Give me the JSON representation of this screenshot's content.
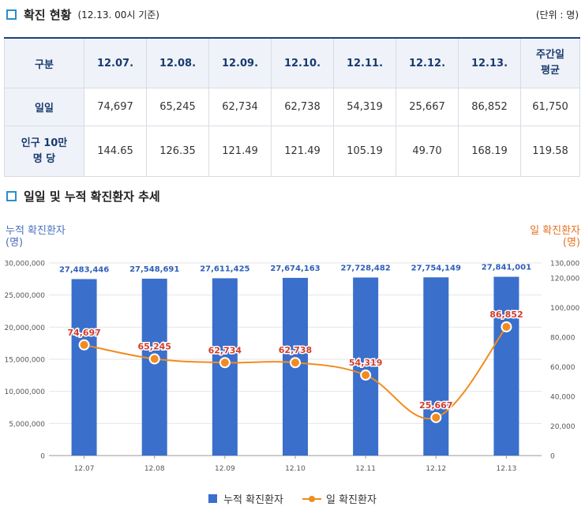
{
  "section1": {
    "title": "확진 현황",
    "subtitle": "(12.13. 00시 기준)",
    "unit": "(단위 : 명)"
  },
  "table": {
    "headers": [
      "구분",
      "12.07.",
      "12.08.",
      "12.09.",
      "12.10.",
      "12.11.",
      "12.12.",
      "12.13.",
      "주간일\n평균"
    ],
    "rows": [
      {
        "label": "일일",
        "values": [
          "74,697",
          "65,245",
          "62,734",
          "62,738",
          "54,319",
          "25,667",
          "86,852",
          "61,750"
        ]
      },
      {
        "label": "인구 10만\n명 당",
        "values": [
          "144.65",
          "126.35",
          "121.49",
          "121.49",
          "105.19",
          "49.70",
          "168.19",
          "119.58"
        ]
      }
    ]
  },
  "section2": {
    "title": "일일 및 누적 확진환자 추세"
  },
  "chart_data": {
    "type": "bar+line",
    "categories": [
      "12.07",
      "12.08",
      "12.09",
      "12.10",
      "12.11",
      "12.12",
      "12.13"
    ],
    "series": [
      {
        "name": "누적 확진환자",
        "type": "bar",
        "axis": "left",
        "color": "#3a6fcc",
        "values": [
          27483446,
          27548691,
          27611425,
          27674163,
          27728482,
          27754149,
          27841001
        ],
        "labels": [
          "27,483,446",
          "27,548,691",
          "27,611,425",
          "27,674,163",
          "27,728,482",
          "27,754,149",
          "27,841,001"
        ]
      },
      {
        "name": "일 확진환자",
        "type": "line",
        "axis": "right",
        "color": "#f08c1e",
        "values": [
          74697,
          65245,
          62734,
          62738,
          54319,
          25667,
          86852
        ],
        "labels": [
          "74,697",
          "65,245",
          "62,734",
          "62,738",
          "54,319",
          "25,667",
          "86,852"
        ]
      }
    ],
    "left_axis": {
      "label_line1": "누적 확진환자",
      "label_line2": "(명)",
      "ylim": [
        0,
        30000000
      ],
      "ticks": [
        0,
        5000000,
        10000000,
        15000000,
        20000000,
        25000000,
        30000000
      ],
      "tick_labels": [
        "0",
        "5,000,000",
        "10,000,000",
        "15,000,000",
        "20,000,000",
        "25,000,000",
        "30,000,000"
      ]
    },
    "right_axis": {
      "label_line1": "일 확진환자",
      "label_line2": "(명)",
      "ylim": [
        0,
        130000
      ],
      "ticks": [
        0,
        20000,
        40000,
        60000,
        80000,
        100000,
        120000,
        130000
      ],
      "tick_labels": [
        "0",
        "20,000",
        "40,000",
        "60,000",
        "80,000",
        "100,000",
        "120,000",
        "130,000"
      ]
    },
    "legend": [
      "누적 확진환자",
      "일 확진환자"
    ],
    "colors": {
      "bar": "#3a6fcc",
      "line": "#f08c1e",
      "bar_label": "#2d5fb8",
      "line_label": "#d43c2a"
    }
  }
}
